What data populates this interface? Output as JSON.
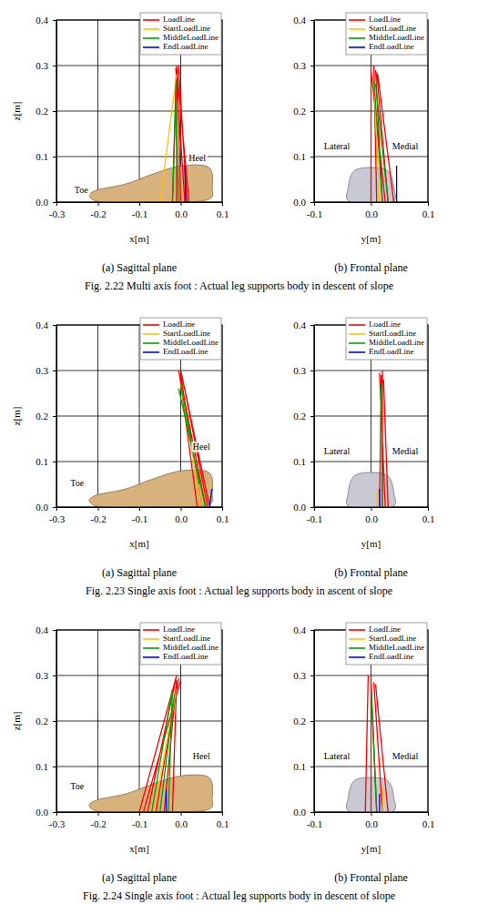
{
  "chart_data": [
    {
      "type": "line",
      "title": "(a) Sagittal plane",
      "xlabel": "x[m]",
      "ylabel": "z[m]",
      "xlim": [
        -0.3,
        0.1
      ],
      "ylim": [
        0,
        0.4
      ],
      "xticks": [
        -0.3,
        -0.2,
        -0.1,
        {
          "value": 0,
          "label": "0.0"
        },
        0.1
      ],
      "yticks": [
        {
          "value": 0,
          "label": "0.0"
        },
        0.1,
        0.2,
        0.3,
        0.4
      ],
      "grid": true,
      "legend": "upper right",
      "annotations": [
        {
          "text": "Toe",
          "x": -0.24,
          "y": 0.025
        },
        {
          "text": "Heel",
          "x": 0.04,
          "y": 0.095
        }
      ],
      "series": [
        {
          "name": "LoadLine",
          "color": "#ff0000",
          "x": [
            0.02,
            -0.01,
            null,
            0.01,
            -0.012,
            null,
            0.0,
            -0.008,
            null,
            -0.01,
            -0.01,
            null,
            -0.02,
            -0.011,
            null,
            0.015,
            -0.005
          ],
          "values": [
            0,
            0.3,
            null,
            0,
            0.295,
            null,
            0,
            0.29,
            null,
            0,
            0.285,
            null,
            0,
            0.28,
            null,
            0,
            0.3
          ]
        },
        {
          "name": "StartLoadLine",
          "color": "#ffc000",
          "x": [
            -0.05,
            -0.01
          ],
          "values": [
            0,
            0.28
          ]
        },
        {
          "name": "MiddleLoadLine",
          "color": "#00a000",
          "x": [
            -0.02,
            -0.01,
            null,
            -0.005,
            -0.012
          ],
          "values": [
            0,
            0.27,
            null,
            0,
            0.26
          ]
        },
        {
          "name": "EndLoadLine",
          "color": "#0000ff",
          "x": [
            0.012,
            0.01
          ],
          "values": [
            0,
            0.08
          ]
        }
      ]
    },
    {
      "type": "line",
      "title": "(b) Frontal plane",
      "xlabel": "y[m]",
      "xlim": [
        -0.1,
        0.1
      ],
      "ylim": [
        0,
        0.4
      ],
      "xticks": [
        -0.1,
        {
          "value": 0,
          "label": "0.0"
        },
        0.1
      ],
      "yticks": [
        {
          "value": 0,
          "label": "0.0"
        },
        0.1,
        0.2,
        0.3,
        0.4
      ],
      "grid": true,
      "legend": "upper right",
      "annotations": [
        {
          "text": "Lateral",
          "x": -0.06,
          "y": 0.12
        },
        {
          "text": "Medial",
          "x": 0.06,
          "y": 0.12
        }
      ],
      "series": [
        {
          "name": "LoadLine",
          "color": "#ff0000",
          "x": [
            0.0,
            0.0,
            null,
            0.01,
            0.005,
            null,
            0.02,
            0.008,
            null,
            0.03,
            0.01,
            null,
            0.04,
            0.012,
            null,
            0.025,
            0.0
          ],
          "values": [
            0,
            0.3,
            null,
            0,
            0.3,
            null,
            0,
            0.29,
            null,
            0,
            0.285,
            null,
            0,
            0.28,
            null,
            0,
            0.29
          ]
        },
        {
          "name": "StartLoadLine",
          "color": "#ffc000",
          "x": [
            0.015,
            0.005
          ],
          "values": [
            0,
            0.27
          ]
        },
        {
          "name": "MiddleLoadLine",
          "color": "#00a000",
          "x": [
            0.02,
            0.005,
            null,
            0.03,
            0.008
          ],
          "values": [
            0,
            0.27,
            null,
            0,
            0.26
          ]
        },
        {
          "name": "EndLoadLine",
          "color": "#0000ff",
          "x": [
            0.045,
            0.045
          ],
          "values": [
            0,
            0.08
          ]
        }
      ]
    },
    {
      "type": "line",
      "title": "(a) Sagittal plane",
      "xlabel": "x[m]",
      "ylabel": "z[m]",
      "xlim": [
        -0.3,
        0.1
      ],
      "ylim": [
        0,
        0.4
      ],
      "xticks": [
        -0.3,
        -0.2,
        -0.1,
        {
          "value": 0,
          "label": "0.0"
        },
        0.1
      ],
      "yticks": [
        {
          "value": 0,
          "label": "0.0"
        },
        0.1,
        0.2,
        0.3,
        0.4
      ],
      "grid": true,
      "legend": "upper right",
      "annotations": [
        {
          "text": "Toe",
          "x": -0.25,
          "y": 0.05
        },
        {
          "text": "Heel",
          "x": 0.05,
          "y": 0.13
        }
      ],
      "series": [
        {
          "name": "LoadLine",
          "color": "#ff0000",
          "x": [
            0.07,
            0.0,
            null,
            0.06,
            -0.005,
            null,
            0.05,
            0.0,
            null,
            0.04,
            -0.002,
            null,
            0.065,
            0.005
          ],
          "values": [
            0,
            0.3,
            null,
            0,
            0.3,
            null,
            0,
            0.29,
            null,
            0,
            0.285,
            null,
            0,
            0.28
          ]
        },
        {
          "name": "StartLoadLine",
          "color": "#ffc000",
          "x": [
            0.05,
            0.0
          ],
          "values": [
            0,
            0.27
          ]
        },
        {
          "name": "MiddleLoadLine",
          "color": "#00a000",
          "x": [
            0.045,
            0.0,
            null,
            0.06,
            -0.005
          ],
          "values": [
            0.05,
            0.27,
            null,
            0,
            0.26
          ]
        },
        {
          "name": "EndLoadLine",
          "color": "#0000ff",
          "x": [
            0.07,
            0.075
          ],
          "values": [
            0,
            0.04
          ]
        }
      ]
    },
    {
      "type": "line",
      "title": "(b) Frontal plane",
      "xlabel": "y[m]",
      "xlim": [
        -0.1,
        0.1
      ],
      "ylim": [
        0,
        0.4
      ],
      "xticks": [
        -0.1,
        {
          "value": 0,
          "label": "0.0"
        },
        0.1
      ],
      "yticks": [
        {
          "value": 0,
          "label": "0.0"
        },
        0.1,
        0.2,
        0.3,
        0.4
      ],
      "grid": true,
      "legend": "upper right",
      "annotations": [
        {
          "text": "Lateral",
          "x": -0.06,
          "y": 0.12
        },
        {
          "text": "Medial",
          "x": 0.06,
          "y": 0.12
        }
      ],
      "series": [
        {
          "name": "LoadLine",
          "color": "#ff0000",
          "x": [
            0.02,
            0.02,
            null,
            0.025,
            0.015,
            null,
            0.015,
            0.018,
            null,
            0.03,
            0.022
          ],
          "values": [
            0,
            0.3,
            null,
            0,
            0.295,
            null,
            0,
            0.29,
            null,
            0,
            0.28
          ]
        },
        {
          "name": "StartLoadLine",
          "color": "#ffc000",
          "x": [
            0.01,
            0.012
          ],
          "values": [
            0,
            0.04
          ]
        },
        {
          "name": "MiddleLoadLine",
          "color": "#00a000",
          "x": [
            0.02,
            0.018
          ],
          "values": [
            0,
            0.27
          ]
        },
        {
          "name": "EndLoadLine",
          "color": "#0000ff",
          "x": [
            0.015,
            0.015
          ],
          "values": [
            0,
            0.04
          ]
        }
      ]
    },
    {
      "type": "line",
      "title": "(a) Sagittal plane",
      "xlabel": "x[m]",
      "ylabel": "z[m]",
      "xlim": [
        -0.3,
        0.1
      ],
      "ylim": [
        0,
        0.4
      ],
      "xticks": [
        -0.3,
        -0.2,
        -0.1,
        {
          "value": 0,
          "label": "0.0"
        },
        0.1
      ],
      "yticks": [
        {
          "value": 0,
          "label": "0.0"
        },
        0.1,
        0.2,
        0.3,
        0.4
      ],
      "grid": true,
      "legend": "upper right",
      "annotations": [
        {
          "text": "Toe",
          "x": -0.25,
          "y": 0.055
        },
        {
          "text": "Heel",
          "x": 0.05,
          "y": 0.12
        }
      ],
      "series": [
        {
          "name": "LoadLine",
          "color": "#ff0000",
          "x": [
            -0.1,
            -0.01,
            null,
            -0.08,
            -0.01,
            null,
            -0.06,
            -0.005,
            null,
            -0.04,
            -0.01,
            null,
            -0.02,
            -0.01,
            null,
            -0.09,
            0.0
          ],
          "values": [
            0,
            0.3,
            null,
            0,
            0.3,
            null,
            0,
            0.295,
            null,
            0,
            0.29,
            null,
            0,
            0.285,
            null,
            0,
            0.29
          ]
        },
        {
          "name": "StartLoadLine",
          "color": "#ffc000",
          "x": [
            -0.065,
            -0.01
          ],
          "values": [
            0,
            0.27
          ]
        },
        {
          "name": "MiddleLoadLine",
          "color": "#00a000",
          "x": [
            -0.07,
            -0.02,
            null,
            -0.05,
            -0.015,
            null,
            -0.03,
            -0.02
          ],
          "values": [
            0,
            0.27,
            null,
            0,
            0.26,
            null,
            0,
            0.27
          ]
        },
        {
          "name": "EndLoadLine",
          "color": "#0000ff",
          "x": [
            -0.035,
            -0.035
          ],
          "values": [
            0,
            0.05
          ]
        }
      ]
    },
    {
      "type": "line",
      "title": "(b) Frontal plane",
      "xlabel": "y[m]",
      "xlim": [
        -0.1,
        0.1
      ],
      "ylim": [
        0,
        0.4
      ],
      "xticks": [
        -0.1,
        {
          "value": 0,
          "label": "0.0"
        },
        0.1
      ],
      "yticks": [
        {
          "value": 0,
          "label": "0.0"
        },
        0.1,
        0.2,
        0.3,
        0.4
      ],
      "grid": true,
      "legend": "upper right",
      "annotations": [
        {
          "text": "Lateral",
          "x": -0.06,
          "y": 0.12
        },
        {
          "text": "Medial",
          "x": 0.06,
          "y": 0.12
        }
      ],
      "series": [
        {
          "name": "LoadLine",
          "color": "#ff0000",
          "x": [
            -0.01,
            -0.005,
            null,
            0.0,
            0.0,
            null,
            0.01,
            0.0,
            null,
            0.02,
            0.005,
            null,
            0.03,
            0.008
          ],
          "values": [
            0,
            0.3,
            null,
            0,
            0.3,
            null,
            0,
            0.29,
            null,
            0,
            0.285,
            null,
            0,
            0.28
          ]
        },
        {
          "name": "StartLoadLine",
          "color": "#ffc000",
          "x": [
            0.02,
            0.022
          ],
          "values": [
            0,
            0.06
          ]
        },
        {
          "name": "MiddleLoadLine",
          "color": "#00a000",
          "x": [
            0.01,
            0.0
          ],
          "values": [
            0,
            0.27
          ]
        },
        {
          "name": "EndLoadLine",
          "color": "#0000ff",
          "x": [
            0.015,
            0.015
          ],
          "values": [
            0,
            0.04
          ]
        }
      ]
    }
  ],
  "figure_captions": [
    "Fig. 2.22 Multi axis foot : Actual leg supports body in descent of slope",
    "Fig. 2.23 Single axis foot : Actual leg supports body in ascent of slope",
    "Fig. 2.24 Single axis foot : Actual leg supports body in descent of slope"
  ]
}
